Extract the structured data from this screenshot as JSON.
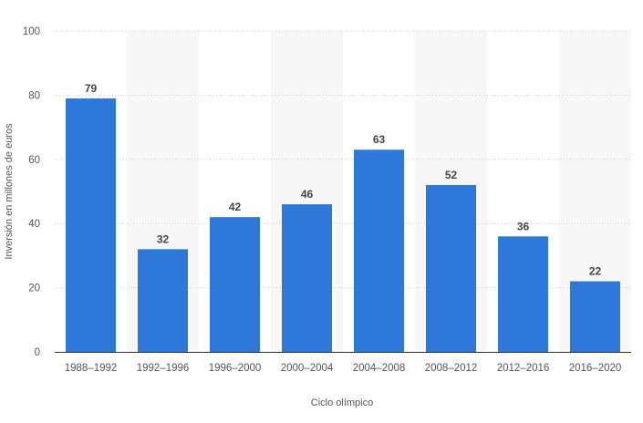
{
  "chart_data": {
    "type": "bar",
    "title": "",
    "xlabel": "Ciclo olímpico",
    "ylabel": "Inversión en millones de euros",
    "categories": [
      "1988–1992",
      "1992–1996",
      "1996–2000",
      "2000–2004",
      "2004–2008",
      "2008–2012",
      "2012–2016",
      "2016–2020"
    ],
    "values": [
      79,
      32,
      42,
      46,
      63,
      52,
      36,
      22
    ],
    "data_labels": [
      "79",
      "32",
      "42",
      "46",
      "63",
      "52",
      "36",
      "22"
    ],
    "ylim": [
      0,
      100
    ],
    "yticks": [
      0,
      20,
      40,
      60,
      80,
      100
    ],
    "ytick_labels": [
      "0",
      "20",
      "40",
      "60",
      "80",
      "100"
    ],
    "grid": true,
    "legend": "none",
    "colors": {
      "bar": "#2e78d9",
      "alt_band": "#f7f7f7",
      "grid": "#cccccc",
      "baseline": "#333333"
    }
  }
}
